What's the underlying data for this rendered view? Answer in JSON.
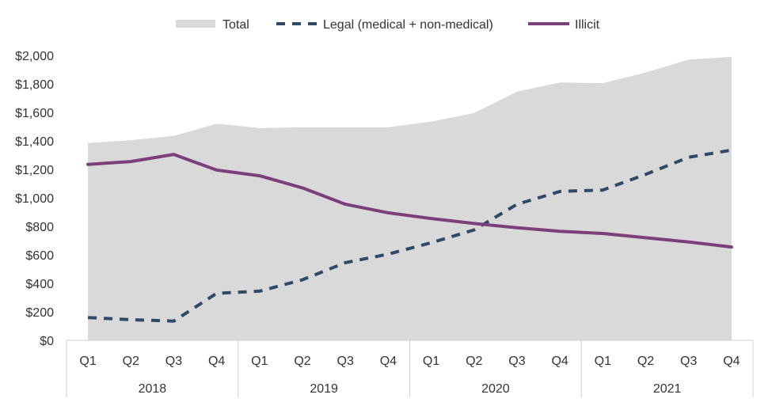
{
  "chart_data": {
    "type": "area+line",
    "title": "",
    "xlabel": "",
    "ylabel": "",
    "ylim": [
      0,
      2000
    ],
    "yticks": [
      0,
      200,
      400,
      600,
      800,
      1000,
      1200,
      1400,
      1600,
      1800,
      2000
    ],
    "ytick_labels": [
      "$0",
      "$200",
      "$400",
      "$600",
      "$800",
      "$1,000",
      "$1,200",
      "$1,400",
      "$1,600",
      "$1,800",
      "$2,000"
    ],
    "quarters": [
      "Q1",
      "Q2",
      "Q3",
      "Q4",
      "Q1",
      "Q2",
      "Q3",
      "Q4",
      "Q1",
      "Q2",
      "Q3",
      "Q4",
      "Q1",
      "Q2",
      "Q3",
      "Q4"
    ],
    "years": [
      "2018",
      "2019",
      "2020",
      "2021"
    ],
    "legend_position": "top",
    "series": [
      {
        "name": "Total",
        "kind": "area",
        "color": "#d9d9d9",
        "values": [
          1385,
          1405,
          1435,
          1520,
          1490,
          1495,
          1495,
          1495,
          1535,
          1595,
          1745,
          1810,
          1805,
          1880,
          1970,
          1990
        ]
      },
      {
        "name": "Legal (medical + non-medical)",
        "kind": "dashed-line",
        "color": "#2e4a66",
        "values": [
          160,
          145,
          135,
          330,
          345,
          425,
          545,
          605,
          685,
          775,
          955,
          1045,
          1055,
          1165,
          1285,
          1335
        ]
      },
      {
        "name": "Illicit",
        "kind": "line",
        "color": "#7b3f7a",
        "values": [
          1235,
          1255,
          1305,
          1195,
          1155,
          1070,
          955,
          895,
          855,
          820,
          790,
          765,
          750,
          720,
          690,
          655
        ]
      }
    ]
  }
}
